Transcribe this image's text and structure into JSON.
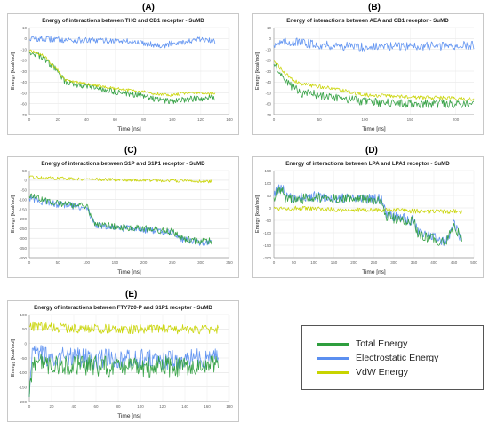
{
  "panels": [
    {
      "letter": "(A)",
      "title": "Energy of interactions between THC and CB1 receptor - SuMD",
      "xlabel": "Time [ns]",
      "ylabel": "Energy [kcal/mol]"
    },
    {
      "letter": "(B)",
      "title": "Energy of interactions between AEA and CB1 receptor - SuMD",
      "xlabel": "Time [ns]",
      "ylabel": "Energy [kcal/mol]"
    },
    {
      "letter": "(C)",
      "title": "Energy of interactions between S1P and  S1P1 receptor - SuMD",
      "xlabel": "Time [ns]",
      "ylabel": "Energy [kcal/mol]"
    },
    {
      "letter": "(D)",
      "title": "Energy of interactions between LPA and LPA1 receptor - SuMD",
      "xlabel": "Time [ns]",
      "ylabel": "Energy [kcal/mol]"
    },
    {
      "letter": "(E)",
      "title": "Energy of interactions between FTY720-P and  S1P1 receptor - SuMD",
      "xlabel": "Time [ns]",
      "ylabel": "Energy [kcal/mol]"
    }
  ],
  "legend": {
    "items": [
      {
        "label": "Total Energy",
        "color": "#2e9e3e"
      },
      {
        "label": "Electrostatic Energy",
        "color": "#5b8ff0"
      },
      {
        "label": "VdW Energy",
        "color": "#c8d400"
      }
    ]
  },
  "chart_data": [
    {
      "type": "line",
      "title": "Energy of interactions between THC and CB1 receptor - SuMD",
      "xlabel": "Time [ns]",
      "ylabel": "Energy [kcal/mol]",
      "xlim": [
        0,
        140
      ],
      "ylim": [
        -70,
        10
      ],
      "xticks": [
        0,
        20,
        40,
        60,
        80,
        100,
        120,
        140
      ],
      "yticks": [
        10,
        0,
        -10,
        -20,
        -30,
        -40,
        -50,
        -60,
        -70
      ],
      "series": [
        {
          "name": "Electrostatic Energy",
          "color": "#5b8ff0",
          "x": [
            0,
            20,
            40,
            60,
            80,
            95,
            100,
            110,
            120,
            130
          ],
          "y": [
            0,
            -1,
            -2,
            -2,
            -4,
            -7,
            -4,
            -3,
            -1,
            -3
          ]
        },
        {
          "name": "Total Energy",
          "color": "#2e9e3e",
          "x": [
            0,
            10,
            20,
            25,
            40,
            60,
            80,
            90,
            100,
            110,
            120,
            130
          ],
          "y": [
            -12,
            -18,
            -30,
            -40,
            -44,
            -49,
            -53,
            -56,
            -58,
            -56,
            -55,
            -54
          ]
        },
        {
          "name": "VdW Energy",
          "color": "#c8d400",
          "x": [
            0,
            10,
            20,
            25,
            40,
            60,
            80,
            90,
            100,
            110,
            120,
            130
          ],
          "y": [
            -11,
            -16,
            -29,
            -38,
            -42,
            -46,
            -49,
            -51,
            -52,
            -50,
            -50,
            -51
          ]
        }
      ]
    },
    {
      "type": "line",
      "title": "Energy of interactions between AEA and CB1 receptor - SuMD",
      "xlabel": "Time [ns]",
      "ylabel": "Energy [kcal/mol]",
      "xlim": [
        0,
        220
      ],
      "ylim": [
        -70,
        10
      ],
      "xticks": [
        0,
        50,
        100,
        150,
        200
      ],
      "yticks": [
        10,
        0,
        -10,
        -20,
        -30,
        -40,
        -50,
        -60,
        -70
      ],
      "series": [
        {
          "name": "Electrostatic Energy",
          "color": "#5b8ff0",
          "x": [
            0,
            20,
            50,
            100,
            150,
            200,
            220
          ],
          "y": [
            -5,
            -3,
            -6,
            -8,
            -7,
            -7,
            -6
          ]
        },
        {
          "name": "Total Energy",
          "color": "#2e9e3e",
          "x": [
            0,
            10,
            20,
            30,
            50,
            75,
            100,
            150,
            200,
            220
          ],
          "y": [
            -22,
            -35,
            -44,
            -50,
            -52,
            -55,
            -58,
            -60,
            -60,
            -61
          ]
        },
        {
          "name": "VdW Energy",
          "color": "#c8d400",
          "x": [
            0,
            10,
            20,
            30,
            50,
            75,
            100,
            150,
            200,
            220
          ],
          "y": [
            -20,
            -30,
            -38,
            -42,
            -44,
            -48,
            -52,
            -54,
            -55,
            -56
          ]
        }
      ]
    },
    {
      "type": "line",
      "title": "Energy of interactions between S1P and  S1P1 receptor - SuMD",
      "xlabel": "Time [ns]",
      "ylabel": "Energy [kcal/mol]",
      "xlim": [
        0,
        350
      ],
      "ylim": [
        -400,
        50
      ],
      "xticks": [
        0,
        50,
        100,
        150,
        200,
        250,
        300,
        350
      ],
      "yticks": [
        50,
        0,
        -50,
        -100,
        -150,
        -200,
        -250,
        -300,
        -350,
        -400
      ],
      "series": [
        {
          "name": "VdW Energy",
          "color": "#c8d400",
          "x": [
            0,
            50,
            100,
            150,
            200,
            250,
            300,
            320
          ],
          "y": [
            15,
            10,
            6,
            3,
            0,
            -2,
            -5,
            -7
          ]
        },
        {
          "name": "Electrostatic Energy",
          "color": "#5b8ff0",
          "x": [
            0,
            20,
            50,
            100,
            115,
            150,
            200,
            250,
            270,
            300,
            320
          ],
          "y": [
            -90,
            -110,
            -125,
            -140,
            -230,
            -245,
            -255,
            -270,
            -310,
            -320,
            -320
          ]
        },
        {
          "name": "Total Energy",
          "color": "#2e9e3e",
          "x": [
            0,
            20,
            50,
            100,
            115,
            150,
            200,
            250,
            270,
            300,
            320
          ],
          "y": [
            -80,
            -100,
            -120,
            -135,
            -225,
            -240,
            -250,
            -265,
            -305,
            -315,
            -315
          ]
        }
      ]
    },
    {
      "type": "line",
      "title": "Energy of interactions between LPA and LPA1 receptor - SuMD",
      "xlabel": "Time [ns]",
      "ylabel": "Energy [kcal/mol]",
      "xlim": [
        0,
        500
      ],
      "ylim": [
        -200,
        150
      ],
      "xticks": [
        0,
        50,
        100,
        150,
        200,
        250,
        300,
        350,
        400,
        450,
        500
      ],
      "yticks": [
        150,
        100,
        50,
        0,
        -50,
        -100,
        -150,
        -200
      ],
      "series": [
        {
          "name": "VdW Energy",
          "color": "#c8d400",
          "x": [
            0,
            50,
            100,
            200,
            300,
            400,
            470
          ],
          "y": [
            0,
            -2,
            -5,
            -8,
            -10,
            -15,
            -15
          ]
        },
        {
          "name": "Electrostatic Energy",
          "color": "#5b8ff0",
          "x": [
            0,
            20,
            30,
            50,
            100,
            150,
            200,
            270,
            280,
            350,
            360,
            400,
            430,
            450,
            470
          ],
          "y": [
            50,
            90,
            40,
            40,
            45,
            40,
            40,
            35,
            -30,
            -50,
            -100,
            -120,
            -140,
            -60,
            -130
          ]
        },
        {
          "name": "Total Energy",
          "color": "#2e9e3e",
          "x": [
            0,
            20,
            30,
            50,
            100,
            150,
            200,
            270,
            280,
            350,
            360,
            400,
            430,
            450,
            470
          ],
          "y": [
            45,
            80,
            35,
            35,
            40,
            35,
            35,
            30,
            -35,
            -55,
            -105,
            -125,
            -145,
            -65,
            -135
          ]
        }
      ]
    },
    {
      "type": "line",
      "title": "Energy of interactions between FTY720-P and  S1P1 receptor - SuMD",
      "xlabel": "Time [ns]",
      "ylabel": "Energy [kcal/mol]",
      "xlim": [
        0,
        180
      ],
      "ylim": [
        -200,
        100
      ],
      "xticks": [
        0,
        20,
        40,
        60,
        80,
        100,
        120,
        140,
        160,
        180
      ],
      "yticks": [
        100,
        50,
        0,
        -50,
        -100,
        -150,
        -200
      ],
      "series": [
        {
          "name": "VdW Energy",
          "color": "#c8d400",
          "x": [
            0,
            20,
            40,
            80,
            120,
            160,
            170
          ],
          "y": [
            60,
            55,
            52,
            50,
            50,
            48,
            48
          ]
        },
        {
          "name": "Electrostatic Energy",
          "color": "#5b8ff0",
          "x": [
            0,
            3,
            10,
            40,
            80,
            120,
            160,
            170
          ],
          "y": [
            -180,
            -30,
            -40,
            -50,
            -55,
            -55,
            -50,
            -50
          ]
        },
        {
          "name": "Total Energy",
          "color": "#2e9e3e",
          "x": [
            0,
            3,
            10,
            40,
            80,
            120,
            160,
            170
          ],
          "y": [
            -180,
            -60,
            -70,
            -75,
            -80,
            -80,
            -75,
            -75
          ]
        }
      ]
    }
  ]
}
